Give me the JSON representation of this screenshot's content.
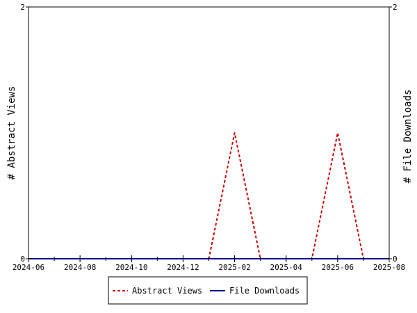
{
  "chart_data": {
    "type": "line",
    "x_axis": {
      "type": "date",
      "range": [
        "2024-06-01",
        "2025-08-01"
      ],
      "tick_labels": [
        "2024-06",
        "2024-08",
        "2024-10",
        "2024-12",
        "2025-02",
        "2025-04",
        "2025-06",
        "2025-08"
      ],
      "minor_ticks": "monthly"
    },
    "y_left": {
      "label": "# Abstract Views",
      "range": [
        0,
        2
      ],
      "tick_labels": [
        "0",
        "2"
      ]
    },
    "y_right": {
      "label": "# File Downloads",
      "range": [
        0,
        2
      ],
      "tick_labels": [
        "0",
        "2"
      ]
    },
    "grid": false,
    "legend": {
      "placement": "bottom-center"
    },
    "series": [
      {
        "name": "Abstract Views",
        "axis": "left",
        "color": "#cc0000",
        "line_style": "dashed",
        "points": [
          {
            "x": "2024-06-01",
            "y": 0
          },
          {
            "x": "2024-07-01",
            "y": 0
          },
          {
            "x": "2024-08-01",
            "y": 0
          },
          {
            "x": "2024-09-01",
            "y": 0
          },
          {
            "x": "2024-10-01",
            "y": 0
          },
          {
            "x": "2024-11-01",
            "y": 0
          },
          {
            "x": "2024-12-01",
            "y": 0
          },
          {
            "x": "2025-01-01",
            "y": 0
          },
          {
            "x": "2025-02-01",
            "y": 1
          },
          {
            "x": "2025-03-01",
            "y": 0
          },
          {
            "x": "2025-04-01",
            "y": 0
          },
          {
            "x": "2025-05-01",
            "y": 0
          },
          {
            "x": "2025-06-01",
            "y": 1
          },
          {
            "x": "2025-07-01",
            "y": 0
          },
          {
            "x": "2025-08-01",
            "y": 0
          }
        ]
      },
      {
        "name": "File Downloads",
        "axis": "right",
        "color": "#000099",
        "line_style": "solid",
        "points": [
          {
            "x": "2024-06-01",
            "y": 0
          },
          {
            "x": "2024-07-01",
            "y": 0
          },
          {
            "x": "2024-08-01",
            "y": 0
          },
          {
            "x": "2024-09-01",
            "y": 0
          },
          {
            "x": "2024-10-01",
            "y": 0
          },
          {
            "x": "2024-11-01",
            "y": 0
          },
          {
            "x": "2024-12-01",
            "y": 0
          },
          {
            "x": "2025-01-01",
            "y": 0
          },
          {
            "x": "2025-02-01",
            "y": 0
          },
          {
            "x": "2025-03-01",
            "y": 0
          },
          {
            "x": "2025-04-01",
            "y": 0
          },
          {
            "x": "2025-05-01",
            "y": 0
          },
          {
            "x": "2025-06-01",
            "y": 0
          },
          {
            "x": "2025-07-01",
            "y": 0
          },
          {
            "x": "2025-08-01",
            "y": 0
          }
        ]
      }
    ]
  }
}
